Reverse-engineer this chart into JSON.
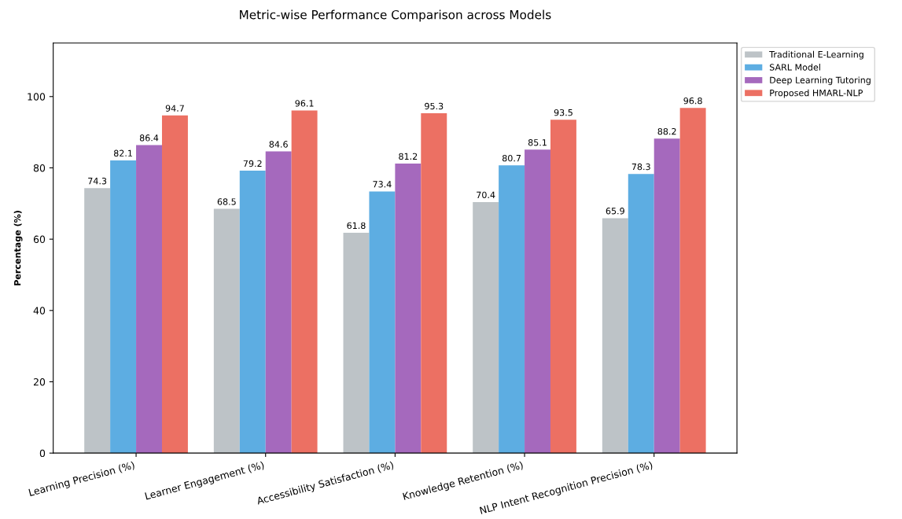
{
  "chart_data": {
    "type": "bar",
    "title": "Metric-wise Performance Comparison across Models",
    "ylabel": "Percentage (%)",
    "categories": [
      "Learning Precision (%)",
      "Learner Engagement (%)",
      "Accessibility Satisfaction (%)",
      "Knowledge Retention (%)",
      "NLP Intent Recognition Precision (%)"
    ],
    "series": [
      {
        "name": "Traditional E-Learning",
        "color": "#bdc3c7",
        "values": [
          74.3,
          68.5,
          61.8,
          70.4,
          65.9
        ]
      },
      {
        "name": "SARL Model",
        "color": "#5dade2",
        "values": [
          82.1,
          79.2,
          73.4,
          80.7,
          78.3
        ]
      },
      {
        "name": "Deep Learning Tutoring",
        "color": "#a569bd",
        "values": [
          86.4,
          84.6,
          81.2,
          85.1,
          88.2
        ]
      },
      {
        "name": "Proposed HMARL-NLP",
        "color": "#ec7063",
        "values": [
          94.7,
          96.1,
          95.3,
          93.5,
          96.8
        ]
      }
    ],
    "ylim": [
      0,
      115
    ],
    "yticks": [
      0,
      20,
      40,
      60,
      80,
      100
    ],
    "data_labels": true,
    "grid": false,
    "legend": "top right"
  }
}
